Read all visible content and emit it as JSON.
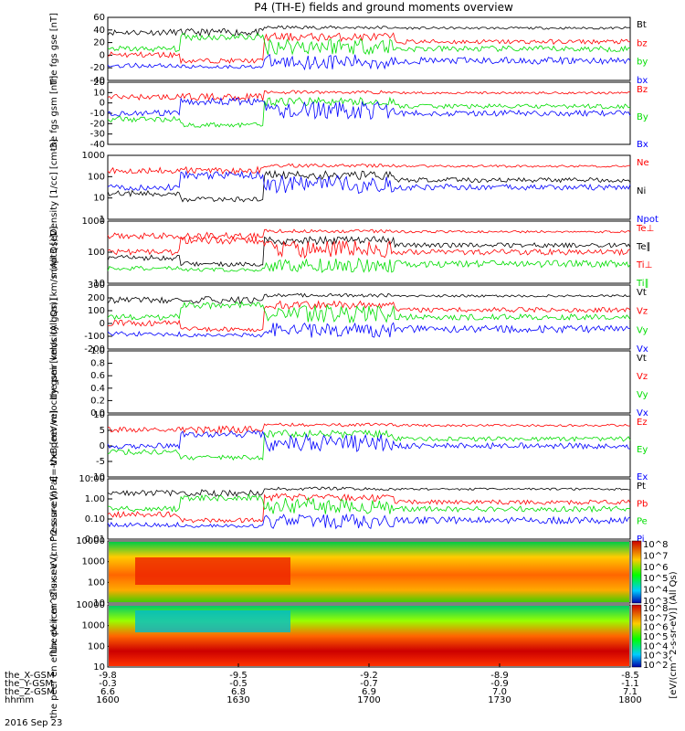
{
  "title": "P4 (TH-E) fields and ground moments overview",
  "date": "2016 Sep 23",
  "colors": {
    "black": "#000000",
    "red": "#ff0000",
    "green": "#00dd00",
    "blue": "#0000ff"
  },
  "colorbar_label": "[eV/(cm^2-s-sr-eV)] (All Qs)",
  "time_axis": {
    "hhmm": [
      "1600",
      "1630",
      "1700",
      "1730",
      "1800"
    ],
    "rows": [
      {
        "label": "the_X-GSM",
        "values": [
          "-9.8",
          "-9.5",
          "-9.2",
          "-8.9",
          "-8.5"
        ]
      },
      {
        "label": "the_Y-GSM",
        "values": [
          "-0.3",
          "-0.5",
          "-0.7",
          "-0.9",
          "-1.1"
        ]
      },
      {
        "label": "the_Z-GSM",
        "values": [
          "6.6",
          "6.8",
          "6.9",
          "7.0",
          "7.1"
        ]
      },
      {
        "label": "hhmm",
        "values": [
          "1600",
          "1630",
          "1700",
          "1730",
          "1800"
        ]
      }
    ]
  },
  "chart_data": [
    {
      "type": "line",
      "ylabel": "the fgs gse [nT]",
      "yticks": [
        "60",
        "40",
        "20",
        "0",
        "-20",
        "-40"
      ],
      "series": [
        {
          "name": "Bt",
          "color": "#000000"
        },
        {
          "name": "bz",
          "color": "#ff0000"
        },
        {
          "name": "by",
          "color": "#00dd00"
        },
        {
          "name": "bx",
          "color": "#0000ff"
        }
      ]
    },
    {
      "type": "line",
      "ylabel": "the fgs gsm [nT]",
      "yticks": [
        "20",
        "10",
        "0",
        "-10",
        "-20",
        "-30",
        "-40"
      ],
      "series": [
        {
          "name": "Bz",
          "color": "#ff0000"
        },
        {
          "name": "By",
          "color": "#00dd00"
        },
        {
          "name": "Bx",
          "color": "#0000ff"
        }
      ]
    },
    {
      "type": "line",
      "ylabel": "Density [1/cc] [cm-3]",
      "yscale": "log",
      "yticks": [
        "1000",
        "100",
        "10",
        "1"
      ],
      "series": [
        {
          "name": "Ne",
          "color": "#ff0000"
        },
        {
          "name": "Ni",
          "color": "#000000"
        },
        {
          "name": "Npot",
          "color": "#0000ff"
        }
      ]
    },
    {
      "type": "line",
      "ylabel": "mnpt3 [eV]",
      "yscale": "log",
      "yticks": [
        "1000",
        "100",
        "10"
      ],
      "series": [
        {
          "name": "Te⊥",
          "color": "#ff0000"
        },
        {
          "name": "Te∥",
          "color": "#000000"
        },
        {
          "name": "Ti⊥",
          "color": "#ff0000"
        },
        {
          "name": "Ti∥",
          "color": "#00dd00"
        }
      ]
    },
    {
      "type": "line",
      "ylabel": "the peir velocity gsm [km/s (All Qs)]",
      "yticks": [
        "300",
        "200",
        "100",
        "0",
        "-100",
        "-200"
      ],
      "series": [
        {
          "name": "Vt",
          "color": "#000000"
        },
        {
          "name": "Vz",
          "color": "#ff0000"
        },
        {
          "name": "Vy",
          "color": "#00dd00"
        },
        {
          "name": "Vx",
          "color": "#0000ff"
        }
      ]
    },
    {
      "type": "line",
      "ylabel": "the peer velocity gsm [km/s (All Qs)]",
      "yticks": [
        "1.0",
        "0.8",
        "0.6",
        "0.4",
        "0.2",
        "0.0"
      ],
      "series": [
        {
          "name": "Vt",
          "color": "#000000"
        },
        {
          "name": "Vz",
          "color": "#ff0000"
        },
        {
          "name": "Vy",
          "color": "#00dd00"
        },
        {
          "name": "Vx",
          "color": "#0000ff"
        }
      ]
    },
    {
      "type": "line",
      "ylabel": "E=-VxB [mV/m]",
      "yticks": [
        "10",
        "5",
        "0",
        "-5",
        "-10"
      ],
      "series": [
        {
          "name": "Ez",
          "color": "#ff0000"
        },
        {
          "name": "Ey",
          "color": "#00dd00"
        },
        {
          "name": "Ex",
          "color": "#0000ff"
        }
      ]
    },
    {
      "type": "line",
      "ylabel": "Pressure [nPa]",
      "yscale": "log",
      "yticks": [
        "10.00",
        "1.00",
        "0.10",
        "0.01"
      ],
      "series": [
        {
          "name": "Pt",
          "color": "#000000"
        },
        {
          "name": "Pb",
          "color": "#ff0000"
        },
        {
          "name": "Pe",
          "color": "#00dd00"
        },
        {
          "name": "Pi",
          "color": "#0000ff"
        }
      ]
    },
    {
      "type": "heatmap",
      "ylabel": "the peir en eflux eV (cm^2-s-sr-eV)",
      "yticks": [
        "10000",
        "1000",
        "100",
        "10"
      ],
      "colorbar_ticks": [
        "10^8",
        "10^7",
        "10^6",
        "10^5",
        "10^4",
        "10^3"
      ]
    },
    {
      "type": "heatmap",
      "ylabel": "the peer en eflux eV (cm^2-s-sr-eV)",
      "yticks": [
        "10000",
        "1000",
        "100",
        "10"
      ],
      "colorbar_ticks": [
        "10^8",
        "10^7",
        "10^6",
        "10^5",
        "10^4",
        "10^3",
        "10^2"
      ]
    }
  ]
}
